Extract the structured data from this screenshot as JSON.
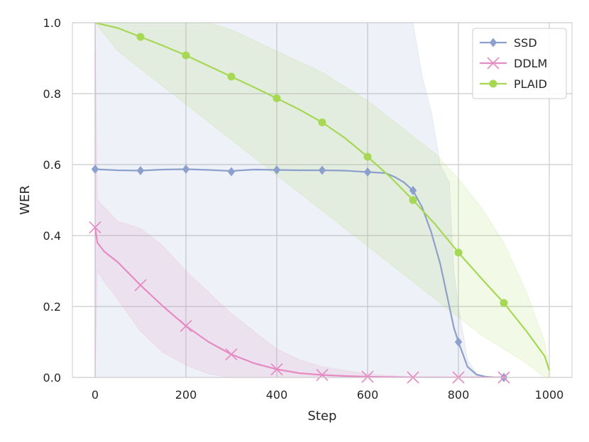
{
  "chart_data": {
    "type": "line",
    "xlabel": "Step",
    "ylabel": "WER",
    "xlim": [
      -50,
      1050
    ],
    "ylim": [
      0.0,
      1.0
    ],
    "xticks": [
      0,
      200,
      400,
      600,
      800,
      1000
    ],
    "yticks": [
      0.0,
      0.2,
      0.4,
      0.6,
      0.8,
      1.0
    ],
    "xtick_labels": [
      "0",
      "200",
      "400",
      "600",
      "800",
      "1000"
    ],
    "ytick_labels": [
      "0.0",
      "0.2",
      "0.4",
      "0.6",
      "0.8",
      "1.0"
    ],
    "grid": true,
    "legend_position": "top-right",
    "series": [
      {
        "name": "SSD",
        "color": "#8da0cb",
        "marker": "diamond",
        "x": [
          0,
          50,
          100,
          150,
          200,
          250,
          300,
          350,
          400,
          450,
          500,
          550,
          600,
          640,
          660,
          680,
          700,
          720,
          740,
          760,
          780,
          790,
          800,
          820,
          840,
          860,
          880,
          900
        ],
        "y": [
          0.587,
          0.584,
          0.583,
          0.586,
          0.587,
          0.585,
          0.582,
          0.586,
          0.585,
          0.584,
          0.584,
          0.583,
          0.579,
          0.576,
          0.565,
          0.55,
          0.527,
          0.48,
          0.41,
          0.32,
          0.2,
          0.14,
          0.1,
          0.03,
          0.008,
          0.002,
          0.0,
          0.0
        ],
        "markers_x": [
          0,
          100,
          200,
          300,
          400,
          500,
          600,
          700,
          800,
          900
        ],
        "markers_y": [
          0.587,
          0.583,
          0.587,
          0.58,
          0.585,
          0.584,
          0.579,
          0.527,
          0.1,
          0.0
        ],
        "band_lower": [
          0.0,
          0.0,
          0.0,
          0.0,
          0.0,
          0.0,
          0.0,
          0.0,
          0.0,
          0.0,
          0.0,
          0.0,
          0.0,
          0.0,
          0.0,
          0.0,
          0.0,
          0.0,
          0.0,
          0.0,
          0.0,
          0.0,
          0.0,
          0.0,
          0.0,
          0.0,
          0.0,
          0.0
        ],
        "band_upper": [
          1.0,
          1.0,
          1.0,
          1.0,
          1.0,
          1.0,
          1.0,
          1.0,
          1.0,
          1.0,
          1.0,
          1.0,
          1.0,
          1.0,
          1.0,
          1.0,
          1.0,
          0.85,
          0.75,
          0.6,
          0.55,
          0.3,
          0.2,
          0.05,
          0.01,
          0.0,
          0.0,
          0.0
        ]
      },
      {
        "name": "DDLM",
        "color": "#e78ac3",
        "marker": "x",
        "x": [
          0,
          5,
          20,
          50,
          100,
          150,
          200,
          250,
          300,
          350,
          400,
          450,
          500,
          550,
          600,
          650,
          700,
          750,
          800,
          850,
          900
        ],
        "y": [
          0.423,
          0.38,
          0.355,
          0.325,
          0.26,
          0.2,
          0.145,
          0.1,
          0.065,
          0.04,
          0.023,
          0.012,
          0.007,
          0.004,
          0.002,
          0.001,
          0.0,
          0.0,
          0.0,
          0.0,
          0.0
        ],
        "markers_x": [
          0,
          100,
          200,
          300,
          400,
          500,
          600,
          700,
          800,
          900
        ],
        "markers_y": [
          0.423,
          0.26,
          0.145,
          0.065,
          0.023,
          0.007,
          0.002,
          0.0,
          0.0,
          0.0
        ],
        "band_lower": [
          0.0,
          0.3,
          0.27,
          0.22,
          0.13,
          0.07,
          0.035,
          0.01,
          0.0,
          0.0,
          0.0,
          0.0,
          0.0,
          0.0,
          0.0,
          0.0,
          0.0,
          0.0,
          0.0,
          0.0,
          0.0
        ],
        "band_upper": [
          1.0,
          0.5,
          0.48,
          0.44,
          0.42,
          0.37,
          0.3,
          0.24,
          0.18,
          0.13,
          0.08,
          0.05,
          0.03,
          0.02,
          0.01,
          0.005,
          0.002,
          0.0,
          0.0,
          0.0,
          0.0
        ]
      },
      {
        "name": "PLAID",
        "color": "#a6d854",
        "marker": "circle",
        "x": [
          0,
          50,
          100,
          150,
          200,
          250,
          300,
          350,
          400,
          450,
          500,
          550,
          600,
          650,
          700,
          750,
          800,
          850,
          900,
          950,
          990,
          1000
        ],
        "y": [
          1.0,
          0.985,
          0.96,
          0.935,
          0.908,
          0.878,
          0.848,
          0.818,
          0.787,
          0.755,
          0.719,
          0.675,
          0.622,
          0.565,
          0.5,
          0.43,
          0.352,
          0.28,
          0.21,
          0.13,
          0.06,
          0.02
        ],
        "markers_x": [
          100,
          200,
          300,
          400,
          500,
          600,
          700,
          800,
          900
        ],
        "markers_y": [
          0.96,
          0.908,
          0.848,
          0.787,
          0.719,
          0.622,
          0.5,
          0.352,
          0.21
        ],
        "band_lower": [
          1.0,
          0.92,
          0.87,
          0.82,
          0.77,
          0.72,
          0.67,
          0.62,
          0.57,
          0.52,
          0.47,
          0.42,
          0.37,
          0.32,
          0.27,
          0.22,
          0.17,
          0.12,
          0.08,
          0.04,
          0.0,
          0.0
        ],
        "band_upper": [
          1.0,
          1.0,
          1.0,
          1.0,
          1.0,
          1.0,
          0.98,
          0.95,
          0.92,
          0.89,
          0.86,
          0.82,
          0.78,
          0.73,
          0.68,
          0.63,
          0.56,
          0.48,
          0.38,
          0.24,
          0.1,
          0.02
        ]
      }
    ]
  }
}
